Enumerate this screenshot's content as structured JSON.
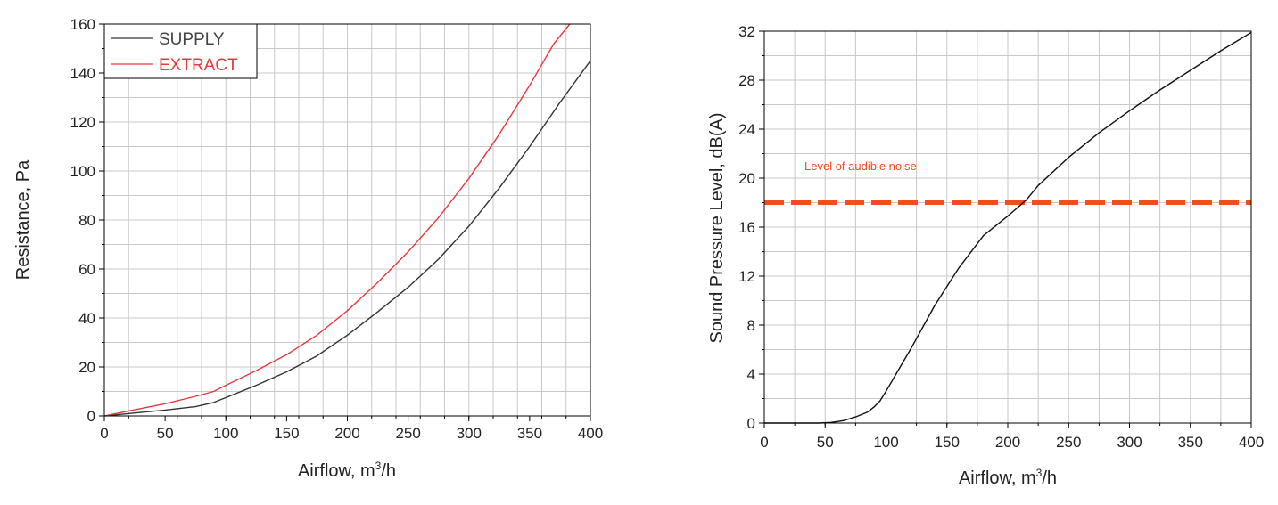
{
  "chart_data": [
    {
      "type": "line",
      "title": "",
      "xlabel": "Airflow, m³/h",
      "ylabel": "Resistance, Pa",
      "xlim": [
        0,
        400
      ],
      "ylim": [
        0,
        160
      ],
      "x_ticks": [
        "0",
        "50",
        "100",
        "150",
        "200",
        "250",
        "300",
        "350",
        "400"
      ],
      "y_ticks": [
        "0",
        "20",
        "40",
        "60",
        "80",
        "100",
        "120",
        "140",
        "160"
      ],
      "grid": true,
      "legend": "top-left",
      "series": [
        {
          "name": "SUPPLY",
          "color": "#333333",
          "points": [
            [
              0,
              0
            ],
            [
              25,
              1.2
            ],
            [
              50,
              2.4
            ],
            [
              75,
              3.8
            ],
            [
              90,
              5.5
            ],
            [
              100,
              7.5
            ],
            [
              125,
              12.5
            ],
            [
              150,
              18
            ],
            [
              175,
              24.5
            ],
            [
              200,
              33
            ],
            [
              225,
              42.5
            ],
            [
              250,
              52.5
            ],
            [
              275,
              64
            ],
            [
              300,
              77.5
            ],
            [
              325,
              93
            ],
            [
              350,
              110
            ],
            [
              375,
              128
            ],
            [
              400,
              145
            ]
          ]
        },
        {
          "name": "EXTRACT",
          "color": "#e8383d",
          "points": [
            [
              0,
              0
            ],
            [
              25,
              2.5
            ],
            [
              50,
              5
            ],
            [
              75,
              8
            ],
            [
              90,
              10
            ],
            [
              100,
              12.5
            ],
            [
              125,
              18.5
            ],
            [
              150,
              25
            ],
            [
              175,
              33
            ],
            [
              200,
              43
            ],
            [
              225,
              54.5
            ],
            [
              250,
              67
            ],
            [
              275,
              81
            ],
            [
              300,
              97
            ],
            [
              325,
              115
            ],
            [
              350,
              135
            ],
            [
              370,
              152
            ],
            [
              383,
              161
            ]
          ]
        }
      ]
    },
    {
      "type": "line",
      "title": "",
      "xlabel": "Airflow, m³/h",
      "ylabel": "Sound Pressure Level, dB(A)",
      "xlim": [
        0,
        400
      ],
      "ylim": [
        0,
        32
      ],
      "x_ticks": [
        "0",
        "50",
        "100",
        "150",
        "200",
        "250",
        "300",
        "350",
        "400"
      ],
      "y_ticks": [
        "0",
        "4",
        "8",
        "12",
        "16",
        "20",
        "24",
        "28",
        "32"
      ],
      "grid": true,
      "series": [
        {
          "color": "#111111",
          "points": [
            [
              0,
              0
            ],
            [
              45,
              0
            ],
            [
              55,
              0.05
            ],
            [
              65,
              0.2
            ],
            [
              75,
              0.5
            ],
            [
              85,
              0.9
            ],
            [
              90,
              1.3
            ],
            [
              95,
              1.8
            ],
            [
              100,
              2.6
            ],
            [
              110,
              4.3
            ],
            [
              120,
              6
            ],
            [
              140,
              9.6
            ],
            [
              160,
              12.7
            ],
            [
              180,
              15.3
            ],
            [
              200,
              16.9
            ],
            [
              215,
              18.2
            ],
            [
              225,
              19.4
            ],
            [
              250,
              21.7
            ],
            [
              275,
              23.7
            ],
            [
              300,
              25.5
            ],
            [
              325,
              27.2
            ],
            [
              350,
              28.8
            ],
            [
              375,
              30.4
            ],
            [
              400,
              31.9
            ]
          ]
        }
      ],
      "reference_line": {
        "label": "Level of audible noise",
        "y": 18,
        "color": "#f04e1e"
      }
    }
  ]
}
